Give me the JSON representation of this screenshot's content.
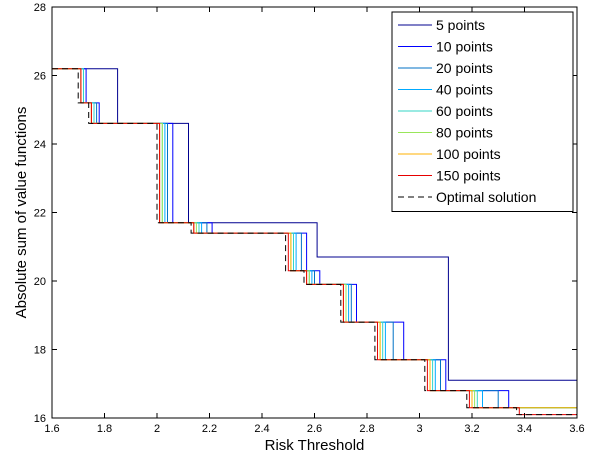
{
  "chart_data": {
    "type": "line",
    "title": "",
    "xlabel": "Risk Threshold",
    "ylabel": "Absolute sum of value functions",
    "xlim": [
      1.6,
      3.6
    ],
    "ylim": [
      16,
      28
    ],
    "xticks": [
      "1.6",
      "1.8",
      "2",
      "2.2",
      "2.4",
      "2.6",
      "2.8",
      "3",
      "3.2",
      "3.4",
      "3.6"
    ],
    "yticks": [
      "16",
      "18",
      "20",
      "22",
      "24",
      "26",
      "28"
    ],
    "grid": false,
    "legend_position": "top-right",
    "series": [
      {
        "name": "5 points",
        "color": "#00008F",
        "dash": "solid",
        "x": [
          1.6,
          1.85,
          1.85,
          2.12,
          2.12,
          2.61,
          2.61,
          3.11,
          3.11,
          3.6
        ],
        "y": [
          26.2,
          26.2,
          24.6,
          24.6,
          21.7,
          21.7,
          20.7,
          20.7,
          17.1,
          17.1
        ]
      },
      {
        "name": "10 points",
        "color": "#0000FF",
        "dash": "solid",
        "x": [
          1.6,
          1.73,
          1.73,
          1.78,
          1.78,
          2.06,
          2.06,
          2.21,
          2.21,
          2.57,
          2.57,
          2.62,
          2.62,
          2.76,
          2.76,
          2.94,
          2.94,
          3.1,
          3.1,
          3.34,
          3.34,
          3.6
        ],
        "y": [
          26.2,
          26.2,
          25.2,
          25.2,
          24.6,
          24.6,
          21.7,
          21.7,
          21.4,
          21.4,
          20.3,
          20.3,
          19.9,
          19.9,
          18.8,
          18.8,
          17.7,
          17.7,
          16.8,
          16.8,
          16.3,
          16.3
        ]
      },
      {
        "name": "20 points",
        "color": "#0072C6",
        "dash": "solid",
        "x": [
          1.6,
          1.72,
          1.72,
          1.77,
          1.77,
          2.04,
          2.04,
          2.19,
          2.19,
          2.55,
          2.55,
          2.6,
          2.6,
          2.74,
          2.74,
          2.9,
          2.9,
          3.08,
          3.08,
          3.3,
          3.3,
          3.6
        ],
        "y": [
          26.2,
          26.2,
          25.2,
          25.2,
          24.6,
          24.6,
          21.7,
          21.7,
          21.4,
          21.4,
          20.3,
          20.3,
          19.9,
          19.9,
          18.8,
          18.8,
          17.7,
          17.7,
          16.8,
          16.8,
          16.3,
          16.3
        ]
      },
      {
        "name": "40 points",
        "color": "#00AAFF",
        "dash": "solid",
        "x": [
          1.6,
          1.72,
          1.72,
          1.76,
          1.76,
          2.03,
          2.03,
          2.17,
          2.17,
          2.53,
          2.53,
          2.59,
          2.59,
          2.73,
          2.73,
          2.87,
          2.87,
          3.06,
          3.06,
          3.24,
          3.24,
          3.6
        ],
        "y": [
          26.2,
          26.2,
          25.2,
          25.2,
          24.6,
          24.6,
          21.7,
          21.7,
          21.4,
          21.4,
          20.3,
          20.3,
          19.9,
          19.9,
          18.8,
          18.8,
          17.7,
          17.7,
          16.8,
          16.8,
          16.3,
          16.3
        ]
      },
      {
        "name": "60 points",
        "color": "#33D6C6",
        "dash": "solid",
        "x": [
          1.6,
          1.72,
          1.72,
          1.76,
          1.76,
          2.02,
          2.02,
          2.16,
          2.16,
          2.52,
          2.52,
          2.58,
          2.58,
          2.72,
          2.72,
          2.86,
          2.86,
          3.05,
          3.05,
          3.22,
          3.22,
          3.6
        ],
        "y": [
          26.2,
          26.2,
          25.2,
          25.2,
          24.6,
          24.6,
          21.7,
          21.7,
          21.4,
          21.4,
          20.3,
          20.3,
          19.9,
          19.9,
          18.8,
          18.8,
          17.7,
          17.7,
          16.8,
          16.8,
          16.3,
          16.3
        ]
      },
      {
        "name": "80 points",
        "color": "#99E65A",
        "dash": "solid",
        "x": [
          1.6,
          1.71,
          1.71,
          1.75,
          1.75,
          2.02,
          2.02,
          2.15,
          2.15,
          2.51,
          2.51,
          2.58,
          2.58,
          2.72,
          2.72,
          2.85,
          2.85,
          3.04,
          3.04,
          3.21,
          3.21,
          3.6
        ],
        "y": [
          26.2,
          26.2,
          25.2,
          25.2,
          24.6,
          24.6,
          21.7,
          21.7,
          21.4,
          21.4,
          20.3,
          20.3,
          19.9,
          19.9,
          18.8,
          18.8,
          17.7,
          17.7,
          16.8,
          16.8,
          16.3,
          16.3
        ]
      },
      {
        "name": "100 points",
        "color": "#FFB000",
        "dash": "solid",
        "x": [
          1.6,
          1.71,
          1.71,
          1.75,
          1.75,
          2.01,
          2.01,
          2.14,
          2.14,
          2.51,
          2.51,
          2.57,
          2.57,
          2.71,
          2.71,
          2.85,
          2.85,
          3.04,
          3.04,
          3.2,
          3.2,
          3.6
        ],
        "y": [
          26.2,
          26.2,
          25.2,
          25.2,
          24.6,
          24.6,
          21.7,
          21.7,
          21.4,
          21.4,
          20.3,
          20.3,
          19.9,
          19.9,
          18.8,
          18.8,
          17.7,
          17.7,
          16.8,
          16.8,
          16.3,
          16.3
        ]
      },
      {
        "name": "150 points",
        "color": "#E60000",
        "dash": "solid",
        "x": [
          1.6,
          1.71,
          1.71,
          1.75,
          1.75,
          2.01,
          2.01,
          2.14,
          2.14,
          2.5,
          2.5,
          2.57,
          2.57,
          2.71,
          2.71,
          2.84,
          2.84,
          3.03,
          3.03,
          3.19,
          3.19,
          3.38,
          3.38,
          3.6
        ],
        "y": [
          26.2,
          26.2,
          25.2,
          25.2,
          24.6,
          24.6,
          21.7,
          21.7,
          21.4,
          21.4,
          20.3,
          20.3,
          19.9,
          19.9,
          18.8,
          18.8,
          17.7,
          17.7,
          16.8,
          16.8,
          16.3,
          16.3,
          16.1,
          16.1
        ]
      },
      {
        "name": "Optimal solution",
        "color": "#000000",
        "dash": "dashed",
        "x": [
          1.6,
          1.7,
          1.7,
          1.74,
          1.74,
          2.0,
          2.0,
          2.13,
          2.13,
          2.49,
          2.49,
          2.56,
          2.56,
          2.7,
          2.7,
          2.83,
          2.83,
          3.02,
          3.02,
          3.18,
          3.18,
          3.37,
          3.37,
          3.6
        ],
        "y": [
          26.2,
          26.2,
          25.2,
          25.2,
          24.6,
          24.6,
          21.7,
          21.7,
          21.4,
          21.4,
          20.3,
          20.3,
          19.9,
          19.9,
          18.8,
          18.8,
          17.7,
          17.7,
          16.8,
          16.8,
          16.3,
          16.3,
          16.1,
          16.1
        ]
      }
    ]
  }
}
